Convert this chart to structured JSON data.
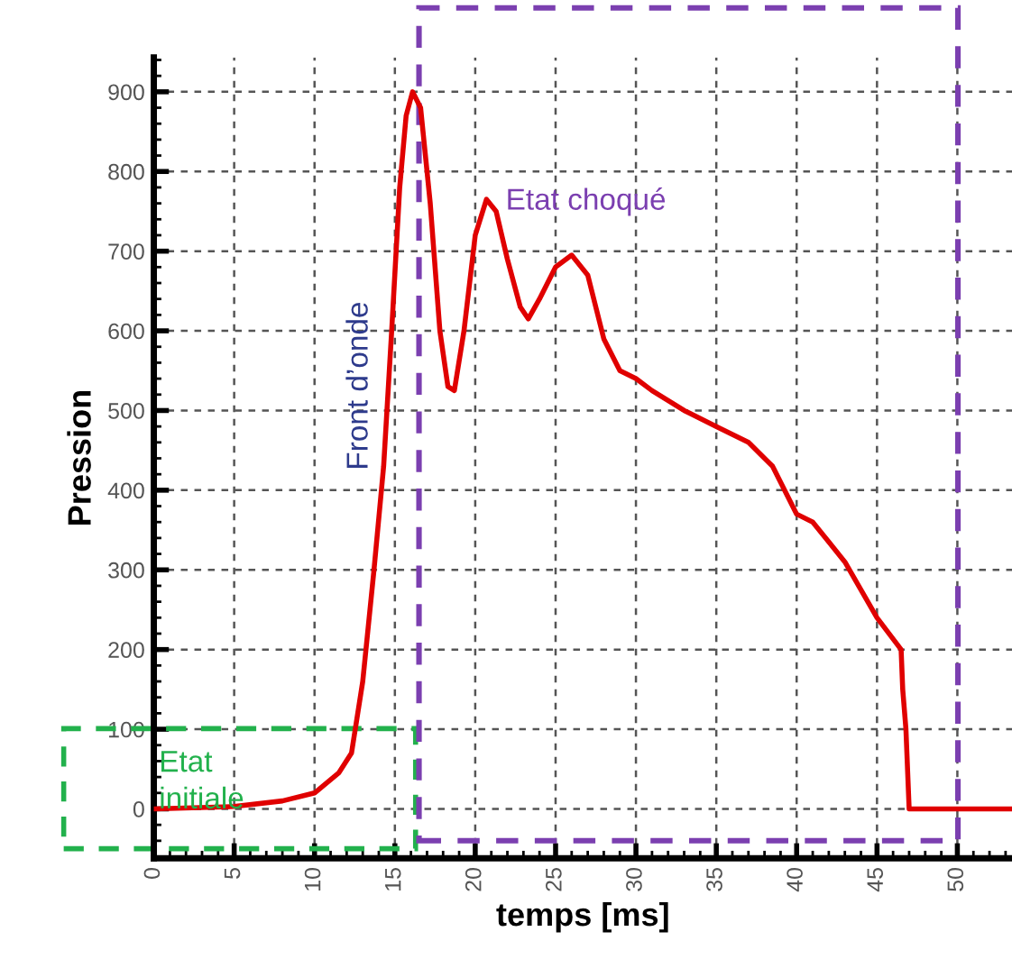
{
  "chart_data": {
    "type": "line",
    "xlabel": "temps [ms]",
    "ylabel": "Pression",
    "x": [
      0,
      5,
      8,
      10,
      11.5,
      12.3,
      13,
      13.7,
      14.3,
      14.8,
      15.3,
      15.7,
      16.1,
      16.6,
      17.2,
      17.8,
      18.3,
      18.7,
      19.3,
      20,
      20.7,
      21.3,
      22,
      22.8,
      23.3,
      24,
      25,
      26,
      27,
      28,
      29,
      30,
      31,
      33,
      35,
      37,
      38.5,
      40,
      41,
      42,
      43,
      44,
      45,
      46.5,
      46.6,
      46.8,
      47,
      53.4
    ],
    "series": [
      {
        "color": "#e00000",
        "values": [
          0,
          3,
          10,
          20,
          45,
          70,
          160,
          300,
          430,
          600,
          780,
          870,
          900,
          880,
          760,
          600,
          530,
          525,
          600,
          720,
          765,
          750,
          690,
          630,
          615,
          640,
          680,
          695,
          670,
          590,
          550,
          540,
          525,
          500,
          480,
          460,
          430,
          370,
          360,
          335,
          310,
          275,
          240,
          200,
          150,
          100,
          0,
          0
        ]
      }
    ],
    "xlim": [
      0,
      53.4
    ],
    "ylim": [
      -62,
      943
    ],
    "xticks": [
      0,
      5,
      10,
      15,
      20,
      25,
      30,
      35,
      40,
      45,
      50
    ],
    "yticks": [
      0,
      100,
      200,
      300,
      400,
      500,
      600,
      700,
      800,
      900
    ],
    "grid": true,
    "line_style": "solid",
    "marker": "none",
    "legend": false,
    "annotations": [
      "Front d’onde",
      "Etat choqué",
      "Etat\ninitiale"
    ]
  }
}
